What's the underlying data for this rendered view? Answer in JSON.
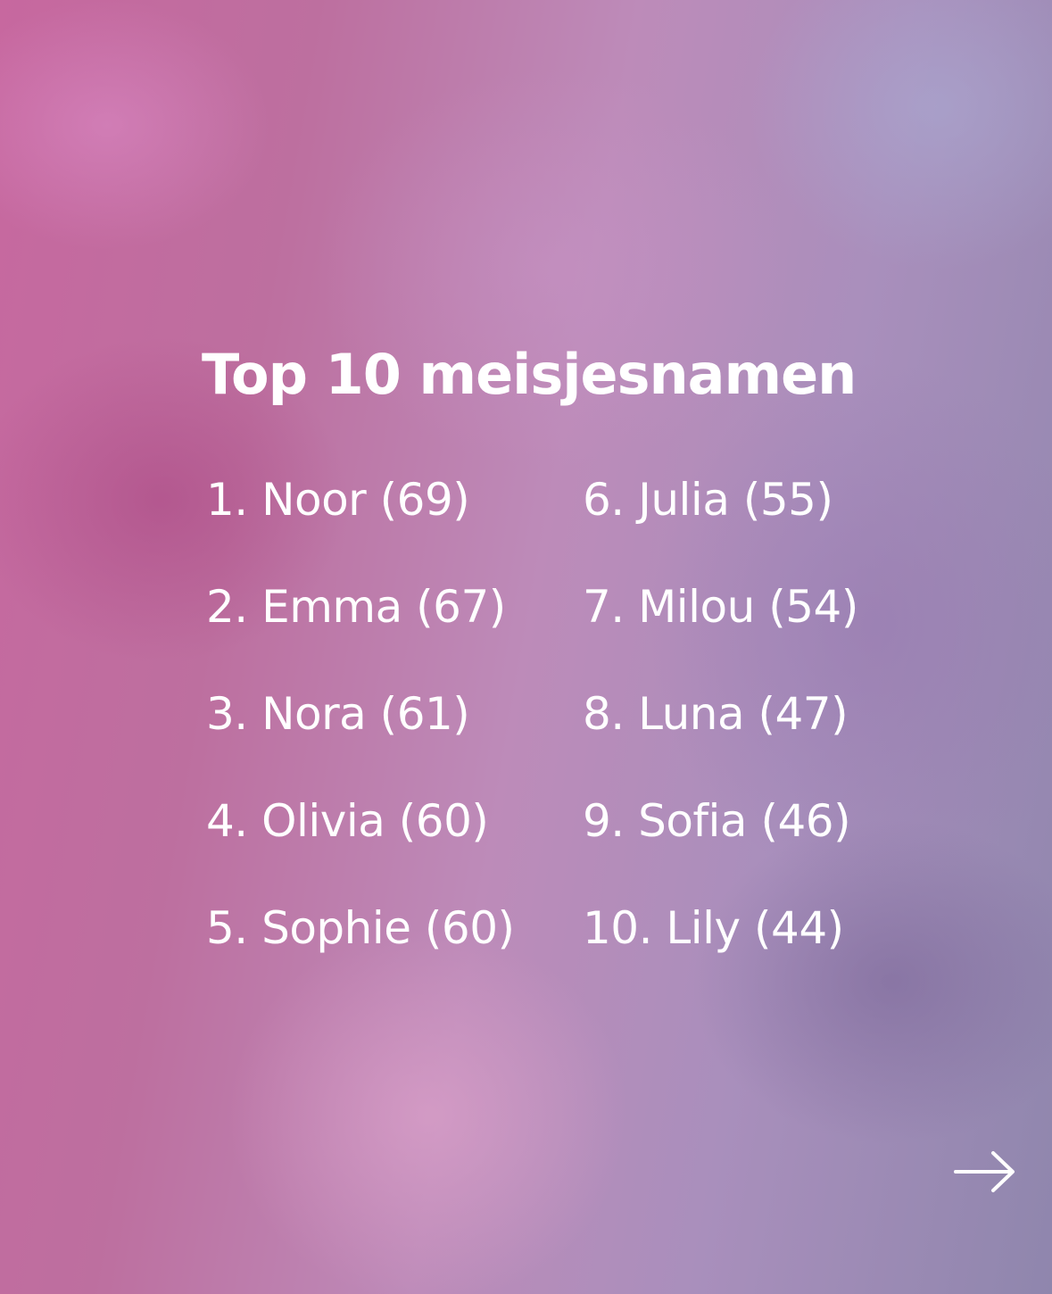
{
  "title": "Top 10 meisjesnamen",
  "names_left": [
    "1. Noor (69)",
    "2. Emma (67)",
    "3. Nora (61)",
    "4. Olivia (60)",
    "5. Sophie (60)"
  ],
  "names_right": [
    "6. Julia (55)",
    "7. Milou (54)",
    "8. Luna (47)",
    "9. Sofia (46)",
    "10. Lily (44)"
  ],
  "next_icon": "arrow-right-icon",
  "colors": {
    "text": "#ffffff",
    "background_pink": "#c7689f",
    "background_lavender": "#8f86ad"
  }
}
